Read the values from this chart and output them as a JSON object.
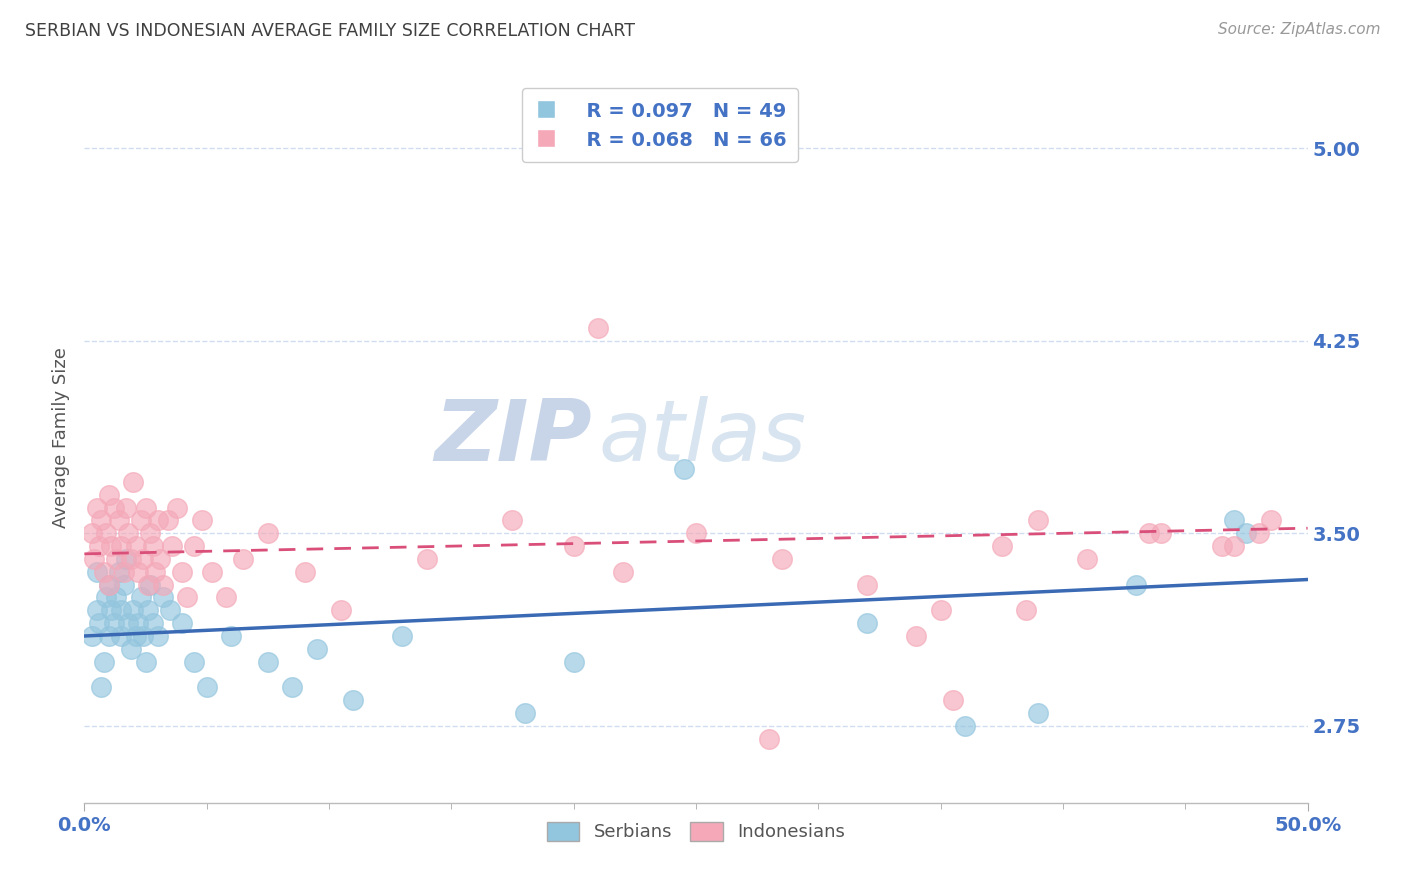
{
  "title": "SERBIAN VS INDONESIAN AVERAGE FAMILY SIZE CORRELATION CHART",
  "source_text": "Source: ZipAtlas.com",
  "ylabel": "Average Family Size",
  "xlim": [
    0.0,
    50.0
  ],
  "ylim": [
    2.45,
    5.3
  ],
  "yticks": [
    2.75,
    3.5,
    4.25,
    5.0
  ],
  "xticks": [
    0.0,
    50.0
  ],
  "xticklabels": [
    "0.0%",
    "50.0%"
  ],
  "serbian_color": "#92c5de",
  "indonesian_color": "#f4a8b8",
  "serbian_line_color": "#3b6ab5",
  "indonesian_line_color": "#d94f7a",
  "axis_tick_color": "#4472c4",
  "grid_color": "#d0ddf0",
  "title_color": "#404040",
  "watermark_color": "#dde5f0",
  "legend_serbian_r": "R = 0.097",
  "legend_serbian_n": "N = 49",
  "legend_indonesian_r": "R = 0.068",
  "legend_indonesian_n": "N = 66",
  "serbians_label": "Serbians",
  "indonesians_label": "Indonesians",
  "serbian_scatter_x": [
    0.3,
    0.5,
    0.5,
    0.6,
    0.7,
    0.8,
    0.9,
    1.0,
    1.0,
    1.1,
    1.2,
    1.3,
    1.4,
    1.5,
    1.5,
    1.6,
    1.7,
    1.8,
    1.9,
    2.0,
    2.1,
    2.2,
    2.3,
    2.4,
    2.5,
    2.6,
    2.7,
    2.8,
    3.0,
    3.2,
    3.5,
    4.0,
    4.5,
    5.0,
    6.0,
    7.5,
    8.5,
    9.5,
    11.0,
    13.0,
    18.0,
    20.0,
    24.5,
    32.0,
    36.0,
    39.0,
    43.0,
    47.0,
    47.5
  ],
  "serbian_scatter_y": [
    3.1,
    3.2,
    3.35,
    3.15,
    2.9,
    3.0,
    3.25,
    3.1,
    3.3,
    3.2,
    3.15,
    3.25,
    3.35,
    3.1,
    3.2,
    3.3,
    3.4,
    3.15,
    3.05,
    3.2,
    3.1,
    3.15,
    3.25,
    3.1,
    3.0,
    3.2,
    3.3,
    3.15,
    3.1,
    3.25,
    3.2,
    3.15,
    3.0,
    2.9,
    3.1,
    3.0,
    2.9,
    3.05,
    2.85,
    3.1,
    2.8,
    3.0,
    3.75,
    3.15,
    2.75,
    2.8,
    3.3,
    3.55,
    3.5
  ],
  "indonesian_scatter_x": [
    0.3,
    0.4,
    0.5,
    0.6,
    0.7,
    0.8,
    0.9,
    1.0,
    1.0,
    1.1,
    1.2,
    1.3,
    1.4,
    1.5,
    1.6,
    1.7,
    1.8,
    1.9,
    2.0,
    2.1,
    2.2,
    2.3,
    2.4,
    2.5,
    2.6,
    2.7,
    2.8,
    2.9,
    3.0,
    3.1,
    3.2,
    3.4,
    3.6,
    3.8,
    4.0,
    4.2,
    4.5,
    4.8,
    5.2,
    5.8,
    6.5,
    7.5,
    9.0,
    10.5,
    14.0,
    17.5,
    20.0,
    22.0,
    25.0,
    28.5,
    32.0,
    35.0,
    37.5,
    39.0,
    41.0,
    44.0,
    46.5,
    48.5,
    21.0,
    34.0,
    38.5,
    43.5,
    47.0,
    48.0,
    28.0,
    35.5
  ],
  "indonesian_scatter_y": [
    3.5,
    3.4,
    3.6,
    3.45,
    3.55,
    3.35,
    3.5,
    3.65,
    3.3,
    3.45,
    3.6,
    3.4,
    3.55,
    3.45,
    3.35,
    3.6,
    3.5,
    3.4,
    3.7,
    3.45,
    3.35,
    3.55,
    3.4,
    3.6,
    3.3,
    3.5,
    3.45,
    3.35,
    3.55,
    3.4,
    3.3,
    3.55,
    3.45,
    3.6,
    3.35,
    3.25,
    3.45,
    3.55,
    3.35,
    3.25,
    3.4,
    3.5,
    3.35,
    3.2,
    3.4,
    3.55,
    3.45,
    3.35,
    3.5,
    3.4,
    3.3,
    3.2,
    3.45,
    3.55,
    3.4,
    3.5,
    3.45,
    3.55,
    4.3,
    3.1,
    3.2,
    3.5,
    3.45,
    3.5,
    2.7,
    2.85
  ],
  "serbian_trend_start": 3.1,
  "serbian_trend_end": 3.32,
  "indonesian_trend_start": 3.42,
  "indonesian_trend_end": 3.52
}
